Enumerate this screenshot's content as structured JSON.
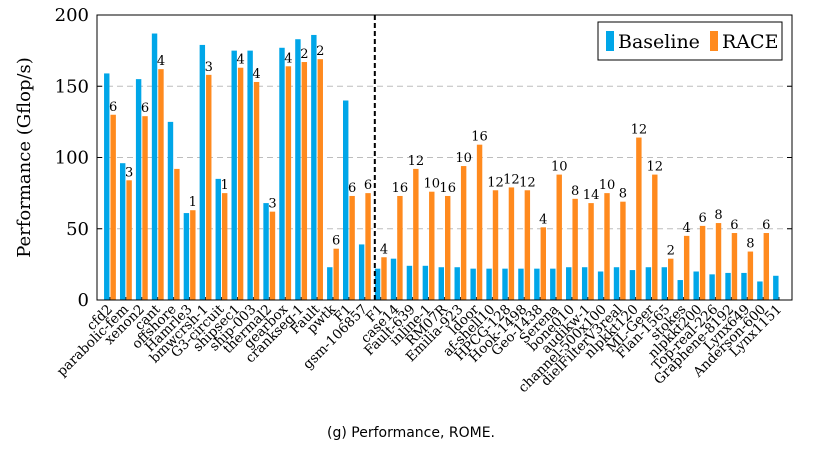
{
  "caption": "(g) Performance, ROME.",
  "colors": {
    "baseline": "#00a6e8",
    "race": "#ff8a1e",
    "grid": "#bdbdbd",
    "separator": "#000000"
  },
  "chart_data": {
    "type": "bar",
    "ylabel": "Performance (Gflop/s)",
    "ylim": [
      0,
      200
    ],
    "yticks": [
      0,
      50,
      100,
      150,
      200
    ],
    "grid": "horizontal dashed",
    "legend_position": "top-right",
    "separator_after_category": "gsm-106857",
    "categories": [
      "cfd2",
      "parabolic-fem",
      "xenon2",
      "cant",
      "offshore",
      "Hamrle3",
      "bmwcrsh-1",
      "G3-circuit",
      "shipsec1",
      "ship-003",
      "thermal2",
      "gearbox",
      "crankseg-1",
      "Fault",
      "pwtk",
      "F1",
      "gsm-106857",
      "F1",
      "case14",
      "Fault-639",
      "inline-1",
      "RM07R",
      "Emilia-923",
      "ldoor",
      "af-shell10",
      "HPCG-128",
      "Hook-1498",
      "Geo-1438",
      "Serena",
      "bone010",
      "audikw-1",
      "channel-500x100",
      "dielFilterV3real",
      "nlpkkt120",
      "ML-Geer",
      "Flan-1565",
      "stokes",
      "nlpkkt200",
      "Top-real-226",
      "Graphene-8192",
      "Lynx649",
      "Anderson-600",
      "Lynx1151"
    ],
    "series": [
      {
        "name": "Baseline",
        "values": [
          159,
          96,
          155,
          187,
          125,
          61,
          179,
          85,
          175,
          175,
          68,
          177,
          183,
          186,
          23,
          140,
          39,
          22,
          29,
          24,
          24,
          23,
          23,
          22,
          22,
          22,
          22,
          22,
          22,
          23,
          23,
          20,
          23,
          21,
          23,
          23,
          14,
          20,
          18,
          19,
          19,
          13,
          17
        ]
      },
      {
        "name": "RACE",
        "values": [
          130,
          84,
          129,
          162,
          92,
          63,
          158,
          75,
          163,
          153,
          62,
          164,
          167,
          169,
          36,
          73,
          75,
          30,
          73,
          92,
          76,
          73,
          94,
          109,
          77,
          79,
          77,
          51,
          88,
          71,
          68,
          75,
          69,
          114,
          88,
          29,
          45,
          52,
          54,
          47,
          34,
          47,
          0
        ]
      }
    ],
    "annotations": [
      "6",
      "3",
      "6",
      "4",
      "",
      "1",
      "3",
      "1",
      "4",
      "4",
      "3",
      "4",
      "2",
      "2",
      "6",
      "6",
      "6",
      "4",
      "16",
      "12",
      "10",
      "16",
      "10",
      "16",
      "12",
      "12",
      "12",
      "4",
      "10",
      "8",
      "14",
      "10",
      "8",
      "12",
      "12",
      "2",
      "4",
      "6",
      "8",
      "6",
      "8",
      "6",
      ""
    ]
  }
}
